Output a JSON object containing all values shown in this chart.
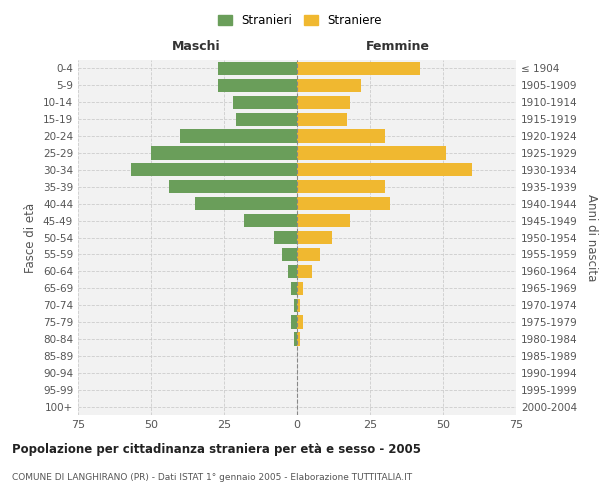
{
  "age_groups": [
    "0-4",
    "5-9",
    "10-14",
    "15-19",
    "20-24",
    "25-29",
    "30-34",
    "35-39",
    "40-44",
    "45-49",
    "50-54",
    "55-59",
    "60-64",
    "65-69",
    "70-74",
    "75-79",
    "80-84",
    "85-89",
    "90-94",
    "95-99",
    "100+"
  ],
  "birth_years": [
    "2000-2004",
    "1995-1999",
    "1990-1994",
    "1985-1989",
    "1980-1984",
    "1975-1979",
    "1970-1974",
    "1965-1969",
    "1960-1964",
    "1955-1959",
    "1950-1954",
    "1945-1949",
    "1940-1944",
    "1935-1939",
    "1930-1934",
    "1925-1929",
    "1920-1924",
    "1915-1919",
    "1910-1914",
    "1905-1909",
    "≤ 1904"
  ],
  "males": [
    27,
    27,
    22,
    21,
    40,
    50,
    57,
    44,
    35,
    18,
    8,
    5,
    3,
    2,
    1,
    2,
    1,
    0,
    0,
    0,
    0
  ],
  "females": [
    42,
    22,
    18,
    17,
    30,
    51,
    60,
    30,
    32,
    18,
    12,
    8,
    5,
    2,
    1,
    2,
    1,
    0,
    0,
    0,
    0
  ],
  "male_color": "#6a9e5a",
  "female_color": "#f0b830",
  "xlim": 75,
  "title": "Popolazione per cittadinanza straniera per à e sesso - 2005",
  "title_display": "Popolazione per cittadinanza straniera per età e sesso - 2005",
  "subtitle": "COMUNE DI LANGHIRANO (PR) - Dati ISTAT 1° gennaio 2005 - Elaborazione TUTTITALIA.IT",
  "legend_male": "Stranieri",
  "legend_female": "Straniere",
  "ylabel_left": "Fasce di età",
  "ylabel_right": "Anni di nascita",
  "xlabel_left": "Maschi",
  "xlabel_right": "Femmine",
  "bg_color": "#f2f2f2",
  "grid_color": "#cccccc"
}
